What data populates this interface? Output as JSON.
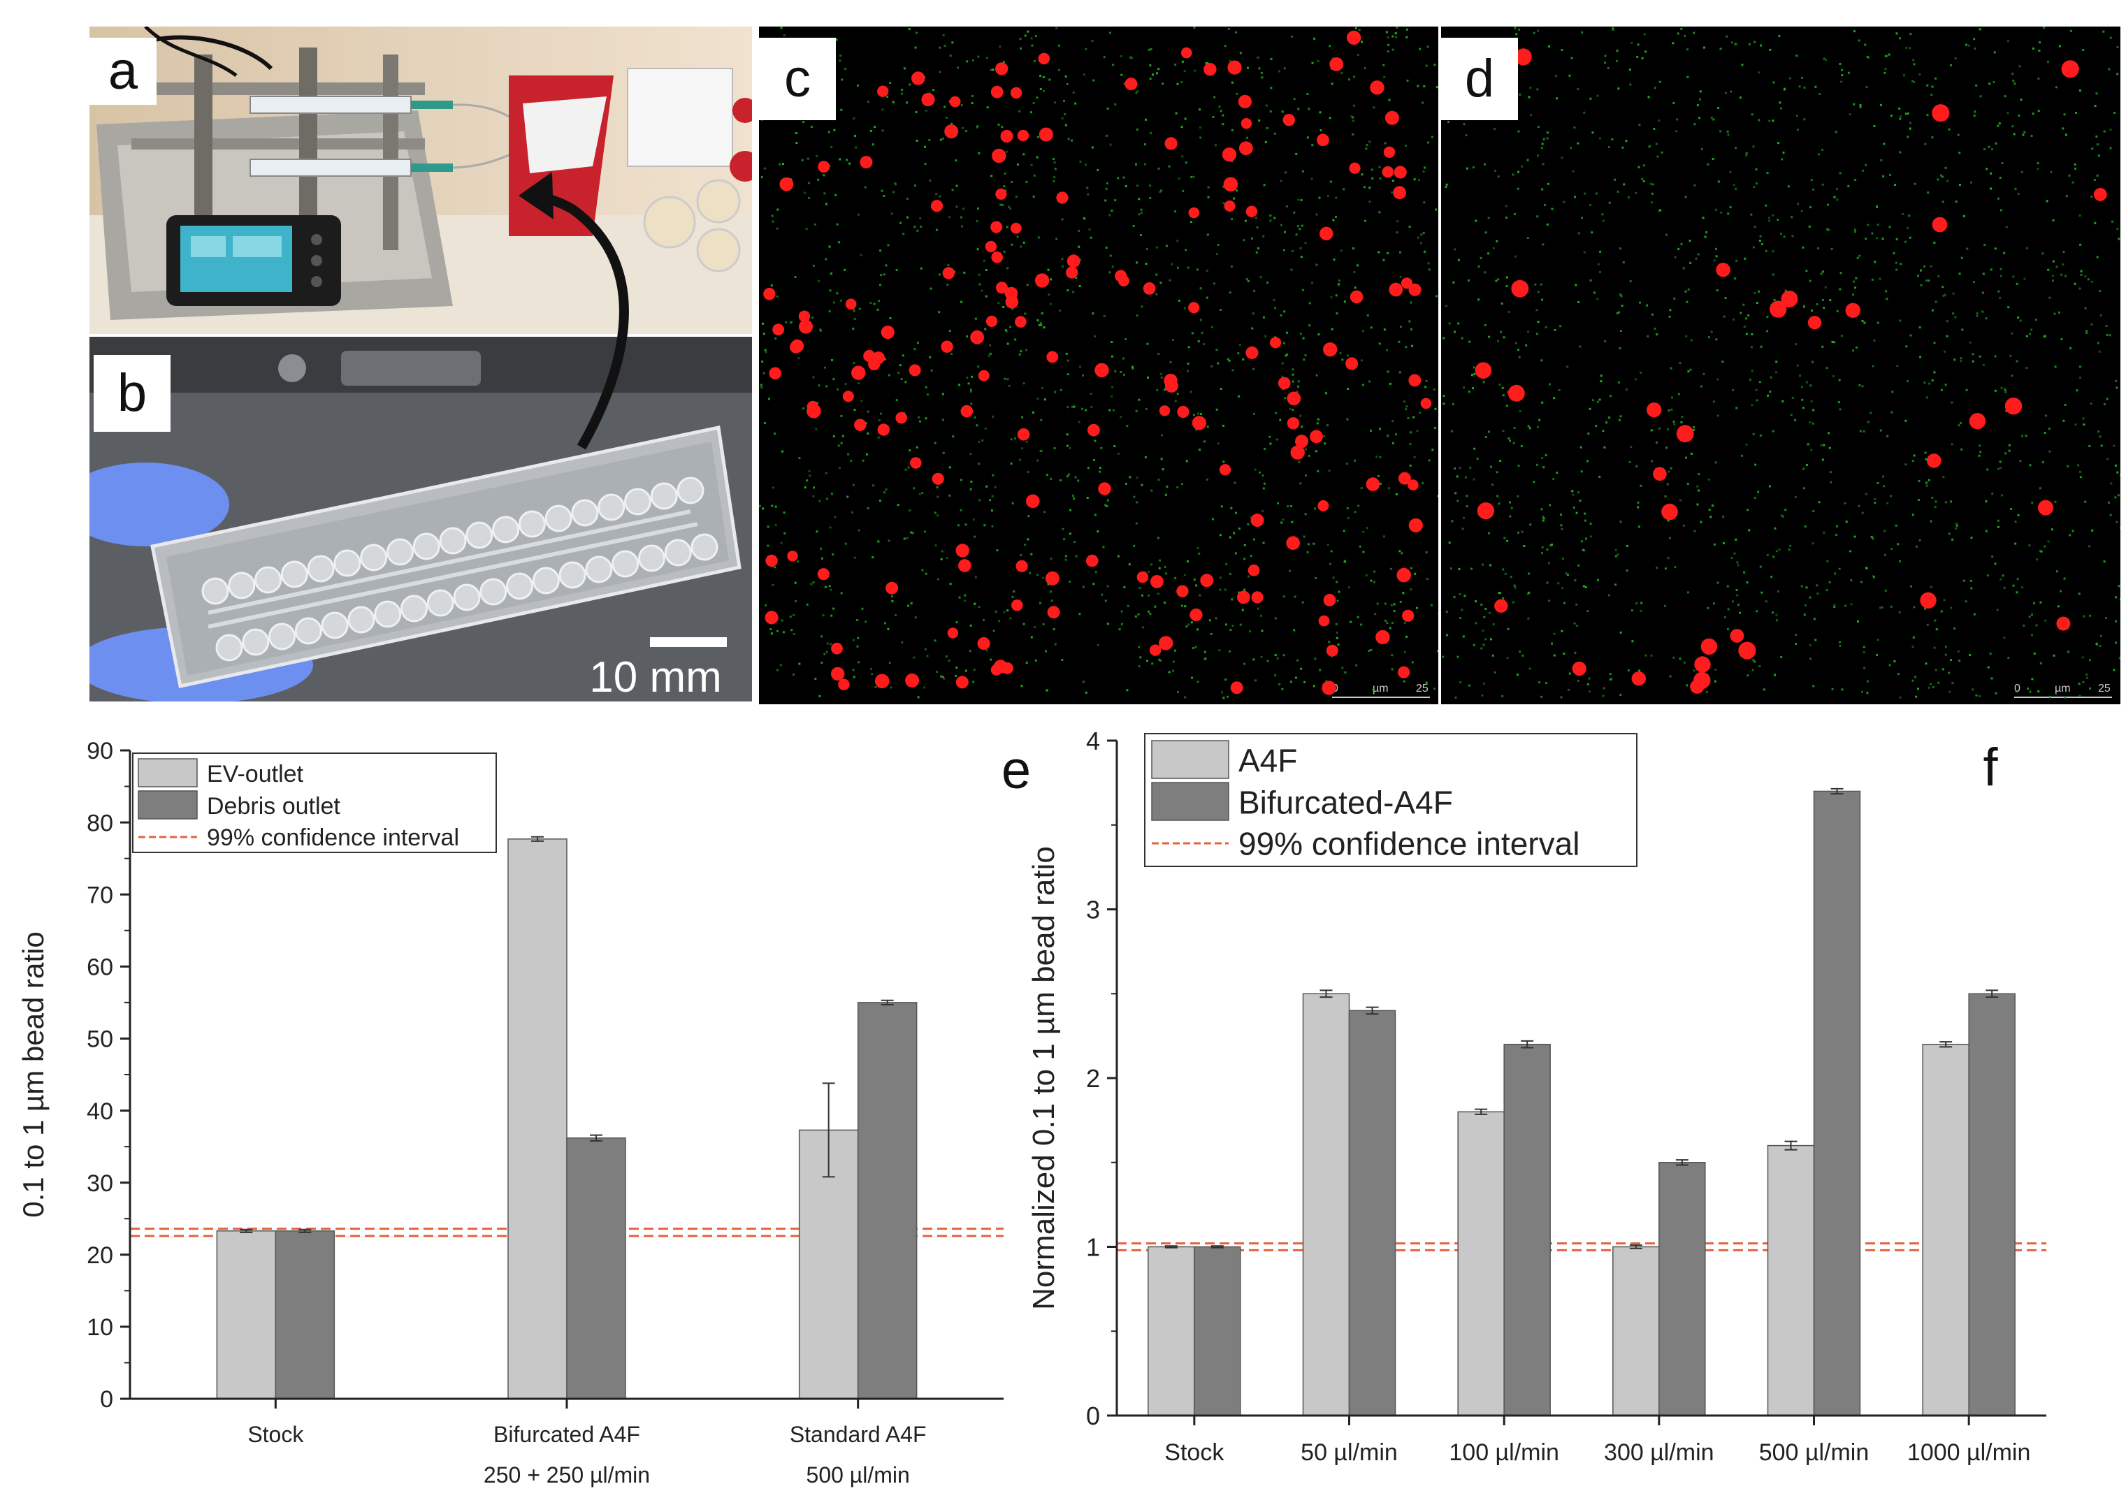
{
  "panel_labels": {
    "a": "a",
    "b": "b",
    "c": "c",
    "d": "d",
    "e": "e",
    "f": "f"
  },
  "scale_bar_text": "10 mm",
  "micro_scale": {
    "left": "0",
    "unit": "µm",
    "right": "25"
  },
  "colors": {
    "light_bar": "#c8c8c8",
    "dark_bar": "#7e7e7e",
    "ci_line": "#e4623c",
    "micro_bead_red": "#ff1c1c",
    "micro_bead_green": "#22b022",
    "photo_arrow": "#111111"
  },
  "chart_data": [
    {
      "type": "bar",
      "categories": [
        "Stock",
        "Bifurcated A4F",
        "Standard A4F"
      ],
      "category_sublabels": [
        "",
        "250 + 250 µl/min",
        "500 µl/min"
      ],
      "series": [
        {
          "name": "EV-outlet",
          "values": [
            23.3,
            77.7,
            37.3
          ],
          "errors": [
            0.2,
            0.3,
            6.5
          ]
        },
        {
          "name": "Debris outlet",
          "values": [
            23.3,
            36.2,
            55.0
          ],
          "errors": [
            0.2,
            0.4,
            0.3
          ]
        }
      ],
      "ci_lines": [
        22.6,
        23.6
      ],
      "ci_label": "99% confidence interval",
      "ylabel": "0.1 to 1 µm bead ratio",
      "xlabel": "",
      "ylim": [
        0,
        90
      ],
      "yticks": [
        0,
        10,
        20,
        30,
        40,
        50,
        60,
        70,
        80,
        90
      ],
      "legend_position": "top-left"
    },
    {
      "type": "bar",
      "categories": [
        "Stock",
        "50 µl/min",
        "100 µl/min",
        "300 µl/min",
        "500 µl/min",
        "1000 µl/min"
      ],
      "series": [
        {
          "name": "A4F",
          "values": [
            1.0,
            2.5,
            1.8,
            1.0,
            1.6,
            2.2
          ],
          "errors": [
            0.005,
            0.02,
            0.015,
            0.01,
            0.025,
            0.015
          ]
        },
        {
          "name": "Bifurcated-A4F",
          "values": [
            1.0,
            2.4,
            2.2,
            1.5,
            3.7,
            2.5
          ],
          "errors": [
            0.005,
            0.02,
            0.02,
            0.015,
            0.015,
            0.02
          ]
        }
      ],
      "ci_lines": [
        0.98,
        1.02
      ],
      "ci_label": "99% confidence interval",
      "ylabel": "Normalized 0.1 to 1 µm bead ratio",
      "xlabel": "",
      "ylim": [
        0,
        4
      ],
      "yticks": [
        0,
        1,
        2,
        3,
        4
      ],
      "legend_position": "top-left"
    }
  ]
}
